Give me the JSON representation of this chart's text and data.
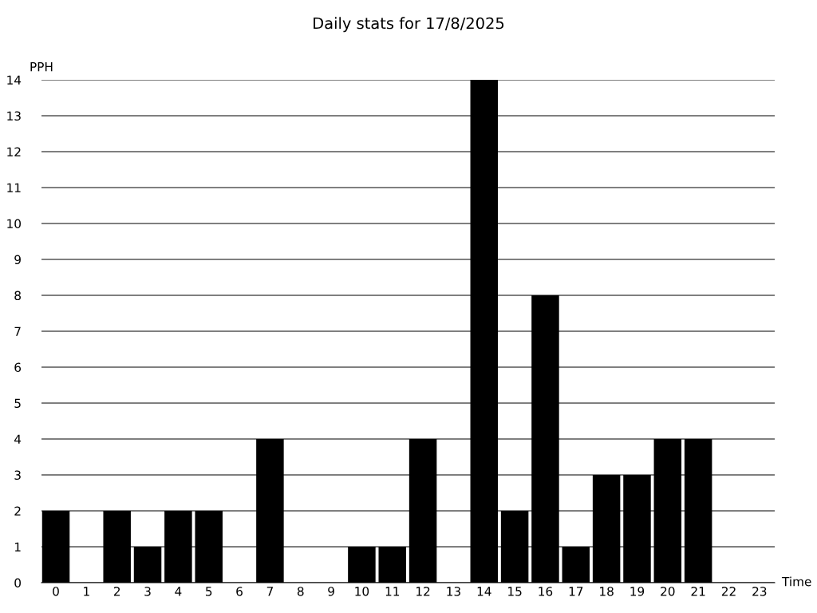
{
  "chart_data": {
    "type": "bar",
    "title": "Daily stats for 17/8/2025",
    "xlabel": "Time",
    "ylabel": "PPH",
    "categories": [
      "0",
      "1",
      "2",
      "3",
      "4",
      "5",
      "6",
      "7",
      "8",
      "9",
      "10",
      "11",
      "12",
      "13",
      "14",
      "15",
      "16",
      "17",
      "18",
      "19",
      "20",
      "21",
      "22",
      "23"
    ],
    "values": [
      2,
      0,
      2,
      1,
      2,
      2,
      0,
      4,
      0,
      0,
      1,
      1,
      4,
      0,
      14,
      2,
      8,
      1,
      3,
      3,
      4,
      4,
      0,
      0
    ],
    "color": "#000000",
    "ylim": [
      0,
      14
    ],
    "yticks": [
      0,
      1,
      2,
      3,
      4,
      5,
      6,
      7,
      8,
      9,
      10,
      11,
      12,
      13,
      14
    ],
    "grid": "y"
  }
}
